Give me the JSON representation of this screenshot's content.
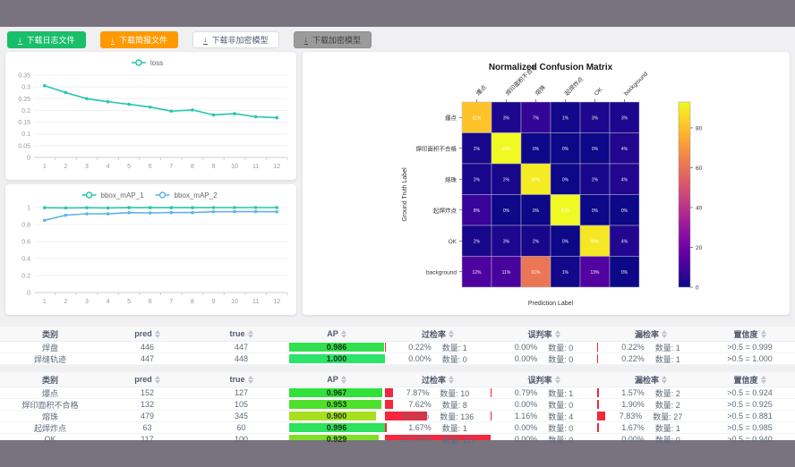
{
  "toolbar": {
    "buttons": [
      {
        "label": "下载日志文件",
        "variant": "green",
        "name": "download-log-button"
      },
      {
        "label": "下载简报文件",
        "variant": "orange",
        "name": "download-report-button"
      },
      {
        "label": "下载非加密模型",
        "variant": "white",
        "name": "download-unencrypted-model-button"
      },
      {
        "label": "下载加密模型",
        "variant": "gray",
        "name": "download-encrypted-model-button"
      }
    ]
  },
  "chart_data": [
    {
      "type": "line",
      "name": "loss-chart",
      "legend": [
        {
          "label": "loss",
          "color": "#26c6b0"
        }
      ],
      "x": [
        1,
        2,
        3,
        4,
        5,
        6,
        7,
        8,
        9,
        10,
        11,
        12
      ],
      "series": [
        {
          "name": "loss",
          "color": "#26c6b0",
          "values": [
            0.305,
            0.276,
            0.25,
            0.237,
            0.226,
            0.214,
            0.197,
            0.202,
            0.181,
            0.186,
            0.173,
            0.169
          ]
        }
      ],
      "ylim": [
        0,
        0.35
      ],
      "yticks": [
        "0",
        "0.05",
        "0.1",
        "0.15",
        "0.2",
        "0.25",
        "0.3",
        "0.35"
      ],
      "grid": true,
      "legend_position": "top"
    },
    {
      "type": "line",
      "name": "bbox-map-chart",
      "legend": [
        {
          "label": "bbox_mAP_1",
          "color": "#27c7a4"
        },
        {
          "label": "bbox_mAP_2",
          "color": "#5db4e6"
        }
      ],
      "x": [
        1,
        2,
        3,
        4,
        5,
        6,
        7,
        8,
        9,
        10,
        11,
        12
      ],
      "series": [
        {
          "name": "bbox_mAP_1",
          "color": "#27c7a4",
          "values": [
            0.998,
            0.996,
            0.998,
            0.996,
            0.999,
            0.999,
            0.999,
            0.999,
            1.0,
            1.0,
            1.0,
            1.0
          ]
        },
        {
          "name": "bbox_mAP_2",
          "color": "#5db4e6",
          "values": [
            0.85,
            0.91,
            0.926,
            0.926,
            0.94,
            0.937,
            0.941,
            0.941,
            0.951,
            0.952,
            0.952,
            0.951
          ]
        }
      ],
      "ylim": [
        0,
        1
      ],
      "yticks": [
        "0",
        "0.2",
        "0.4",
        "0.6",
        "0.8",
        "1"
      ],
      "grid": true,
      "legend_position": "top"
    },
    {
      "type": "heatmap",
      "name": "confusion-matrix",
      "title": "Normalized Confusion Matrix",
      "xlabel": "Prediction Label",
      "ylabel": "Ground Truth Label",
      "labels": [
        "爆点",
        "焊印面积不合格",
        "熔珠",
        "起焊炸点",
        "OK",
        "background"
      ],
      "matrix_percent": [
        [
          81,
          3,
          7,
          1,
          3,
          3
        ],
        [
          2,
          93,
          0,
          0,
          0,
          4
        ],
        [
          2,
          2,
          90,
          0,
          2,
          4
        ],
        [
          8,
          0,
          0,
          93,
          0,
          0
        ],
        [
          2,
          3,
          2,
          0,
          89,
          4
        ],
        [
          12,
          11,
          61,
          1,
          13,
          0
        ]
      ],
      "vmax": 93,
      "colorbar_ticks": [
        0,
        20,
        40,
        60,
        80
      ],
      "colormap": "plasma"
    }
  ],
  "tables": [
    {
      "headers": [
        {
          "label": "类别",
          "sortable": false
        },
        {
          "label": "pred",
          "sortable": true
        },
        {
          "label": "true",
          "sortable": true
        },
        {
          "label": "AP",
          "sortable": true
        },
        {
          "label": "过检率",
          "sortable": true
        },
        {
          "label": "误判率",
          "sortable": true
        },
        {
          "label": "漏检率",
          "sortable": true
        },
        {
          "label": "置信度",
          "sortable": true
        }
      ],
      "rows": [
        {
          "name": "焊盘",
          "pred": "446",
          "true": "447",
          "ap": "0.986",
          "ap_value": 0.986,
          "ap_color": "#30e04e",
          "over_pct": "0.22%",
          "over_cnt": "数量: 1",
          "over_val": 0.22,
          "mis_pct": "0.00%",
          "mis_cnt": "数量: 0",
          "mis_val": 0,
          "miss_pct": "0.22%",
          "miss_cnt": "数量: 1",
          "miss_val": 0.22,
          "conf": ">0.5 = 0.999"
        },
        {
          "name": "焊缝轨迹",
          "pred": "447",
          "true": "448",
          "ap": "1.000",
          "ap_value": 1.0,
          "ap_color": "#2ce36b",
          "over_pct": "0.00%",
          "over_cnt": "数量: 0",
          "over_val": 0,
          "mis_pct": "0.00%",
          "mis_cnt": "数量: 0",
          "mis_val": 0,
          "miss_pct": "0.22%",
          "miss_cnt": "数量: 1",
          "miss_val": 0.22,
          "conf": ">0.5 = 1.000"
        }
      ]
    },
    {
      "headers": [
        {
          "label": "类别",
          "sortable": false
        },
        {
          "label": "pred",
          "sortable": true
        },
        {
          "label": "true",
          "sortable": true
        },
        {
          "label": "AP",
          "sortable": true
        },
        {
          "label": "过检率",
          "sortable": true
        },
        {
          "label": "误判率",
          "sortable": true
        },
        {
          "label": "漏检率",
          "sortable": true
        },
        {
          "label": "置信度",
          "sortable": true
        }
      ],
      "rows": [
        {
          "name": "爆点",
          "pred": "152",
          "true": "127",
          "ap": "0.967",
          "ap_value": 0.967,
          "ap_color": "#31e13c",
          "over_pct": "7.87%",
          "over_cnt": "数量: 10",
          "over_val": 7.87,
          "mis_pct": "0.79%",
          "mis_cnt": "数量: 1",
          "mis_val": 0.79,
          "miss_pct": "1.57%",
          "miss_cnt": "数量: 2",
          "miss_val": 1.57,
          "conf": ">0.5 = 0.924"
        },
        {
          "name": "焊印面积不合格",
          "pred": "132",
          "true": "105",
          "ap": "0.953",
          "ap_value": 0.953,
          "ap_color": "#4fe02d",
          "over_pct": "7.62%",
          "over_cnt": "数量: 8",
          "over_val": 7.62,
          "mis_pct": "0.00%",
          "mis_cnt": "数量: 0",
          "mis_val": 0,
          "miss_pct": "1.90%",
          "miss_cnt": "数量: 2",
          "miss_val": 1.9,
          "conf": ">0.5 = 0.925"
        },
        {
          "name": "熔珠",
          "pred": "479",
          "true": "345",
          "ap": "0.900",
          "ap_value": 0.9,
          "ap_color": "#a8e01f",
          "over_pct": "39.42%",
          "over_cnt": "数量: 136",
          "over_val": 39.42,
          "mis_pct": "1.16%",
          "mis_cnt": "数量: 4",
          "mis_val": 1.16,
          "miss_pct": "7.83%",
          "miss_cnt": "数量: 27",
          "miss_val": 7.83,
          "conf": ">0.5 = 0.881"
        },
        {
          "name": "起焊炸点",
          "pred": "63",
          "true": "60",
          "ap": "0.996",
          "ap_value": 0.996,
          "ap_color": "#2de25c",
          "over_pct": "1.67%",
          "over_cnt": "数量: 1",
          "over_val": 1.67,
          "mis_pct": "0.00%",
          "mis_cnt": "数量: 0",
          "mis_val": 0,
          "miss_pct": "1.67%",
          "miss_cnt": "数量: 1",
          "miss_val": 1.67,
          "conf": ">0.5 = 0.985"
        },
        {
          "name": "OK",
          "pred": "117",
          "true": "100",
          "ap": "0.929",
          "ap_value": 0.929,
          "ap_color": "#7ee026",
          "over_pct": "117.00%",
          "over_cnt": "数量: 117",
          "over_val": 117,
          "mis_pct": "0.00%",
          "mis_cnt": "数量: 0",
          "mis_val": 0,
          "miss_pct": "0.00%",
          "miss_cnt": "数量: 0",
          "miss_val": 0,
          "conf": ">0.5 = 0.940"
        }
      ]
    }
  ],
  "colors": {
    "frame": "#79737f",
    "content_bg": "#f0f0f2",
    "rate_bar_red": "#f5263d",
    "axis_text": "#999999",
    "grid_line": "#eef0f4"
  }
}
